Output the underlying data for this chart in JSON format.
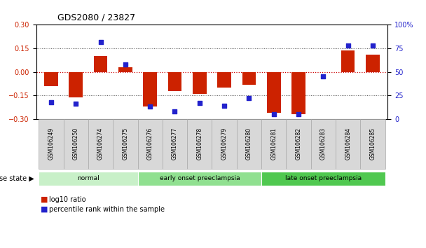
{
  "title": "GDS2080 / 23827",
  "samples": [
    "GSM106249",
    "GSM106250",
    "GSM106274",
    "GSM106275",
    "GSM106276",
    "GSM106277",
    "GSM106278",
    "GSM106279",
    "GSM106280",
    "GSM106281",
    "GSM106282",
    "GSM106283",
    "GSM106284",
    "GSM106285"
  ],
  "log10_ratio": [
    -0.09,
    -0.16,
    0.1,
    0.03,
    -0.22,
    -0.12,
    -0.14,
    -0.1,
    -0.08,
    -0.26,
    -0.27,
    0.0,
    0.135,
    0.11
  ],
  "percentile_rank": [
    18,
    16,
    82,
    58,
    13,
    8,
    17,
    14,
    22,
    5,
    5,
    45,
    78,
    78
  ],
  "groups": [
    {
      "label": "normal",
      "start": 0,
      "end": 4,
      "color": "#c8f0c8"
    },
    {
      "label": "early onset preeclampsia",
      "start": 4,
      "end": 9,
      "color": "#90e090"
    },
    {
      "label": "late onset preeclampsia",
      "start": 9,
      "end": 14,
      "color": "#50c850"
    }
  ],
  "bar_color": "#cc2200",
  "dot_color": "#2222cc",
  "left_ylim": [
    -0.3,
    0.3
  ],
  "right_ylim": [
    0,
    100
  ],
  "left_yticks": [
    -0.3,
    -0.15,
    0,
    0.15,
    0.3
  ],
  "right_yticks": [
    0,
    25,
    50,
    75,
    100
  ],
  "right_yticklabels": [
    "0",
    "25",
    "50",
    "75",
    "100%"
  ],
  "hline_zero_color": "#cc0000",
  "hline_dotted_color": "#555555",
  "background_color": "#ffffff",
  "bar_width": 0.55
}
